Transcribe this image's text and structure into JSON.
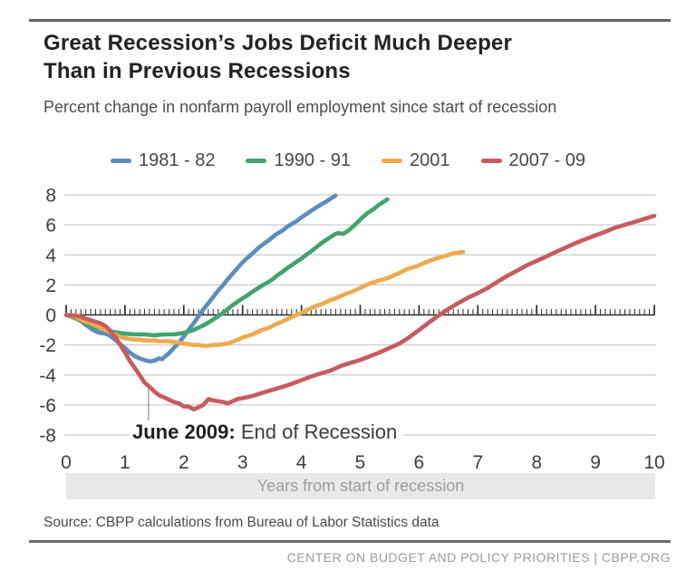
{
  "header": {
    "title_line1": "Great Recession’s Jobs Deficit Much Deeper",
    "title_line2": "Than in Previous Recessions",
    "subtitle": "Percent change in nonfarm payroll employment since start of recession"
  },
  "annotation": {
    "label_bold": "June 2009:",
    "label_rest": " End of Recession"
  },
  "x_axis_band_label": "Years from start of recession",
  "source": "Source: CBPP calculations from Bureau of Labor Statistics data",
  "footer": "CENTER ON BUDGET AND POLICY PRIORITIES | CBPP.ORG",
  "chart_data": {
    "type": "line",
    "title": "Great Recession’s Jobs Deficit Much Deeper Than in Previous Recessions",
    "subtitle": "Percent change in nonfarm payroll employment since start of recession",
    "xlabel": "Years from start of recession",
    "ylabel": "Percent change in nonfarm payroll employment (%)",
    "xlim": [
      0,
      10
    ],
    "ylim": [
      -8,
      8
    ],
    "x_ticks": [
      0,
      1,
      2,
      3,
      4,
      5,
      6,
      7,
      8,
      9,
      10
    ],
    "y_ticks": [
      8,
      6,
      4,
      2,
      0,
      -2,
      -4,
      -6,
      -8
    ],
    "grid": true,
    "legend_position": "top",
    "minor_ticks_per_year": 12,
    "annotations": [
      {
        "x": 1.4,
        "y": -4.9,
        "text": "June 2009: End of Recession"
      }
    ],
    "series": [
      {
        "name": "1981 - 82",
        "color": "#5b8dbd",
        "points": [
          [
            0,
            0
          ],
          [
            0.08,
            -0.05
          ],
          [
            0.17,
            -0.2
          ],
          [
            0.25,
            -0.4
          ],
          [
            0.33,
            -0.65
          ],
          [
            0.42,
            -0.9
          ],
          [
            0.5,
            -1.1
          ],
          [
            0.58,
            -1.2
          ],
          [
            0.67,
            -1.25
          ],
          [
            0.75,
            -1.4
          ],
          [
            0.83,
            -1.65
          ],
          [
            0.92,
            -1.95
          ],
          [
            1.0,
            -2.2
          ],
          [
            1.08,
            -2.5
          ],
          [
            1.17,
            -2.75
          ],
          [
            1.25,
            -2.9
          ],
          [
            1.33,
            -3.0
          ],
          [
            1.42,
            -3.1
          ],
          [
            1.5,
            -3.05
          ],
          [
            1.58,
            -2.9
          ],
          [
            1.63,
            -2.95
          ],
          [
            1.67,
            -2.8
          ],
          [
            1.75,
            -2.55
          ],
          [
            1.83,
            -2.2
          ],
          [
            1.92,
            -1.85
          ],
          [
            2.0,
            -1.45
          ],
          [
            2.08,
            -1.0
          ],
          [
            2.17,
            -0.55
          ],
          [
            2.25,
            -0.1
          ],
          [
            2.33,
            0.35
          ],
          [
            2.42,
            0.8
          ],
          [
            2.5,
            1.2
          ],
          [
            2.58,
            1.6
          ],
          [
            2.67,
            2.0
          ],
          [
            2.75,
            2.4
          ],
          [
            2.83,
            2.75
          ],
          [
            2.92,
            3.15
          ],
          [
            3.0,
            3.5
          ],
          [
            3.08,
            3.8
          ],
          [
            3.17,
            4.1
          ],
          [
            3.25,
            4.4
          ],
          [
            3.33,
            4.65
          ],
          [
            3.42,
            4.9
          ],
          [
            3.5,
            5.15
          ],
          [
            3.58,
            5.4
          ],
          [
            3.67,
            5.6
          ],
          [
            3.75,
            5.85
          ],
          [
            3.83,
            6.05
          ],
          [
            3.92,
            6.25
          ],
          [
            4.0,
            6.5
          ],
          [
            4.08,
            6.7
          ],
          [
            4.17,
            6.95
          ],
          [
            4.25,
            7.15
          ],
          [
            4.33,
            7.35
          ],
          [
            4.42,
            7.55
          ],
          [
            4.5,
            7.75
          ],
          [
            4.58,
            7.95
          ]
        ]
      },
      {
        "name": "1990 - 91",
        "color": "#44a36e",
        "points": [
          [
            0,
            0
          ],
          [
            0.08,
            -0.1
          ],
          [
            0.17,
            -0.25
          ],
          [
            0.25,
            -0.4
          ],
          [
            0.33,
            -0.55
          ],
          [
            0.42,
            -0.7
          ],
          [
            0.5,
            -0.8
          ],
          [
            0.58,
            -0.9
          ],
          [
            0.67,
            -1.0
          ],
          [
            0.75,
            -1.1
          ],
          [
            0.83,
            -1.15
          ],
          [
            0.92,
            -1.2
          ],
          [
            1.0,
            -1.25
          ],
          [
            1.17,
            -1.3
          ],
          [
            1.33,
            -1.3
          ],
          [
            1.5,
            -1.35
          ],
          [
            1.67,
            -1.3
          ],
          [
            1.83,
            -1.3
          ],
          [
            1.92,
            -1.25
          ],
          [
            2.0,
            -1.2
          ],
          [
            2.08,
            -1.1
          ],
          [
            2.17,
            -1.0
          ],
          [
            2.25,
            -0.85
          ],
          [
            2.33,
            -0.7
          ],
          [
            2.42,
            -0.5
          ],
          [
            2.5,
            -0.3
          ],
          [
            2.58,
            -0.1
          ],
          [
            2.67,
            0.15
          ],
          [
            2.75,
            0.4
          ],
          [
            2.83,
            0.65
          ],
          [
            2.92,
            0.9
          ],
          [
            3.0,
            1.1
          ],
          [
            3.08,
            1.3
          ],
          [
            3.17,
            1.55
          ],
          [
            3.25,
            1.75
          ],
          [
            3.33,
            1.95
          ],
          [
            3.42,
            2.15
          ],
          [
            3.5,
            2.35
          ],
          [
            3.58,
            2.6
          ],
          [
            3.67,
            2.85
          ],
          [
            3.75,
            3.1
          ],
          [
            3.83,
            3.3
          ],
          [
            3.92,
            3.55
          ],
          [
            4.0,
            3.75
          ],
          [
            4.08,
            4.0
          ],
          [
            4.17,
            4.25
          ],
          [
            4.25,
            4.5
          ],
          [
            4.33,
            4.75
          ],
          [
            4.42,
            5.0
          ],
          [
            4.5,
            5.2
          ],
          [
            4.58,
            5.4
          ],
          [
            4.63,
            5.45
          ],
          [
            4.71,
            5.4
          ],
          [
            4.79,
            5.6
          ],
          [
            4.88,
            5.9
          ],
          [
            4.96,
            6.2
          ],
          [
            5.04,
            6.5
          ],
          [
            5.13,
            6.8
          ],
          [
            5.21,
            7.0
          ],
          [
            5.29,
            7.25
          ],
          [
            5.38,
            7.5
          ],
          [
            5.46,
            7.7
          ]
        ]
      },
      {
        "name": "2001",
        "color": "#f0a94e",
        "points": [
          [
            0,
            0
          ],
          [
            0.08,
            -0.05
          ],
          [
            0.17,
            -0.15
          ],
          [
            0.25,
            -0.3
          ],
          [
            0.33,
            -0.45
          ],
          [
            0.42,
            -0.55
          ],
          [
            0.5,
            -0.7
          ],
          [
            0.58,
            -0.85
          ],
          [
            0.67,
            -1.0
          ],
          [
            0.75,
            -1.15
          ],
          [
            0.83,
            -1.3
          ],
          [
            0.92,
            -1.45
          ],
          [
            1.0,
            -1.55
          ],
          [
            1.08,
            -1.6
          ],
          [
            1.17,
            -1.65
          ],
          [
            1.25,
            -1.65
          ],
          [
            1.33,
            -1.7
          ],
          [
            1.42,
            -1.7
          ],
          [
            1.5,
            -1.7
          ],
          [
            1.58,
            -1.75
          ],
          [
            1.67,
            -1.75
          ],
          [
            1.75,
            -1.75
          ],
          [
            1.83,
            -1.8
          ],
          [
            1.92,
            -1.85
          ],
          [
            2.0,
            -1.9
          ],
          [
            2.08,
            -1.95
          ],
          [
            2.17,
            -2.0
          ],
          [
            2.25,
            -2.0
          ],
          [
            2.33,
            -2.05
          ],
          [
            2.42,
            -2.05
          ],
          [
            2.5,
            -2.0
          ],
          [
            2.58,
            -2.0
          ],
          [
            2.67,
            -1.95
          ],
          [
            2.75,
            -1.9
          ],
          [
            2.83,
            -1.8
          ],
          [
            2.92,
            -1.65
          ],
          [
            3.0,
            -1.5
          ],
          [
            3.08,
            -1.4
          ],
          [
            3.17,
            -1.3
          ],
          [
            3.25,
            -1.15
          ],
          [
            3.33,
            -1.0
          ],
          [
            3.42,
            -0.9
          ],
          [
            3.5,
            -0.75
          ],
          [
            3.58,
            -0.6
          ],
          [
            3.67,
            -0.45
          ],
          [
            3.75,
            -0.3
          ],
          [
            3.83,
            -0.15
          ],
          [
            3.92,
            0.0
          ],
          [
            4.0,
            0.15
          ],
          [
            4.08,
            0.3
          ],
          [
            4.17,
            0.45
          ],
          [
            4.25,
            0.6
          ],
          [
            4.33,
            0.7
          ],
          [
            4.42,
            0.85
          ],
          [
            4.5,
            1.0
          ],
          [
            4.58,
            1.1
          ],
          [
            4.67,
            1.25
          ],
          [
            4.75,
            1.4
          ],
          [
            4.83,
            1.5
          ],
          [
            4.92,
            1.65
          ],
          [
            5.0,
            1.8
          ],
          [
            5.08,
            1.95
          ],
          [
            5.17,
            2.1
          ],
          [
            5.25,
            2.2
          ],
          [
            5.33,
            2.3
          ],
          [
            5.42,
            2.4
          ],
          [
            5.5,
            2.5
          ],
          [
            5.58,
            2.65
          ],
          [
            5.67,
            2.8
          ],
          [
            5.75,
            2.95
          ],
          [
            5.83,
            3.1
          ],
          [
            5.92,
            3.2
          ],
          [
            6.0,
            3.3
          ],
          [
            6.08,
            3.45
          ],
          [
            6.17,
            3.6
          ],
          [
            6.25,
            3.7
          ],
          [
            6.33,
            3.8
          ],
          [
            6.42,
            3.9
          ],
          [
            6.5,
            4.0
          ],
          [
            6.58,
            4.1
          ],
          [
            6.67,
            4.15
          ],
          [
            6.75,
            4.2
          ]
        ]
      },
      {
        "name": "2007 - 09",
        "color": "#c85b60",
        "points": [
          [
            0,
            0
          ],
          [
            0.08,
            -0.02
          ],
          [
            0.17,
            -0.06
          ],
          [
            0.25,
            -0.12
          ],
          [
            0.33,
            -0.25
          ],
          [
            0.42,
            -0.35
          ],
          [
            0.5,
            -0.45
          ],
          [
            0.58,
            -0.55
          ],
          [
            0.67,
            -0.75
          ],
          [
            0.75,
            -1.05
          ],
          [
            0.83,
            -1.45
          ],
          [
            0.92,
            -2.0
          ],
          [
            1.0,
            -2.5
          ],
          [
            1.08,
            -3.05
          ],
          [
            1.17,
            -3.55
          ],
          [
            1.25,
            -4.0
          ],
          [
            1.33,
            -4.5
          ],
          [
            1.42,
            -4.8
          ],
          [
            1.5,
            -5.1
          ],
          [
            1.58,
            -5.35
          ],
          [
            1.67,
            -5.5
          ],
          [
            1.75,
            -5.65
          ],
          [
            1.83,
            -5.8
          ],
          [
            1.92,
            -5.9
          ],
          [
            2.0,
            -6.1
          ],
          [
            2.08,
            -6.1
          ],
          [
            2.17,
            -6.3
          ],
          [
            2.25,
            -6.15
          ],
          [
            2.33,
            -6.0
          ],
          [
            2.42,
            -5.6
          ],
          [
            2.5,
            -5.7
          ],
          [
            2.58,
            -5.75
          ],
          [
            2.67,
            -5.8
          ],
          [
            2.75,
            -5.9
          ],
          [
            2.83,
            -5.75
          ],
          [
            2.92,
            -5.6
          ],
          [
            3.0,
            -5.55
          ],
          [
            3.17,
            -5.4
          ],
          [
            3.33,
            -5.2
          ],
          [
            3.5,
            -5.0
          ],
          [
            3.67,
            -4.8
          ],
          [
            3.83,
            -4.6
          ],
          [
            4.0,
            -4.35
          ],
          [
            4.17,
            -4.1
          ],
          [
            4.33,
            -3.9
          ],
          [
            4.5,
            -3.7
          ],
          [
            4.67,
            -3.4
          ],
          [
            4.83,
            -3.2
          ],
          [
            5.0,
            -3.0
          ],
          [
            5.17,
            -2.75
          ],
          [
            5.33,
            -2.5
          ],
          [
            5.5,
            -2.2
          ],
          [
            5.67,
            -1.9
          ],
          [
            5.83,
            -1.5
          ],
          [
            6.0,
            -1.0
          ],
          [
            6.17,
            -0.5
          ],
          [
            6.33,
            -0.05
          ],
          [
            6.5,
            0.4
          ],
          [
            6.67,
            0.8
          ],
          [
            6.83,
            1.15
          ],
          [
            7.0,
            1.45
          ],
          [
            7.17,
            1.8
          ],
          [
            7.33,
            2.2
          ],
          [
            7.5,
            2.6
          ],
          [
            7.67,
            2.95
          ],
          [
            7.83,
            3.3
          ],
          [
            8.0,
            3.6
          ],
          [
            8.17,
            3.9
          ],
          [
            8.33,
            4.2
          ],
          [
            8.5,
            4.5
          ],
          [
            8.67,
            4.8
          ],
          [
            8.83,
            5.05
          ],
          [
            9.0,
            5.3
          ],
          [
            9.17,
            5.55
          ],
          [
            9.33,
            5.8
          ],
          [
            9.5,
            6.0
          ],
          [
            9.67,
            6.2
          ],
          [
            9.83,
            6.4
          ],
          [
            10.0,
            6.6
          ]
        ]
      }
    ]
  }
}
